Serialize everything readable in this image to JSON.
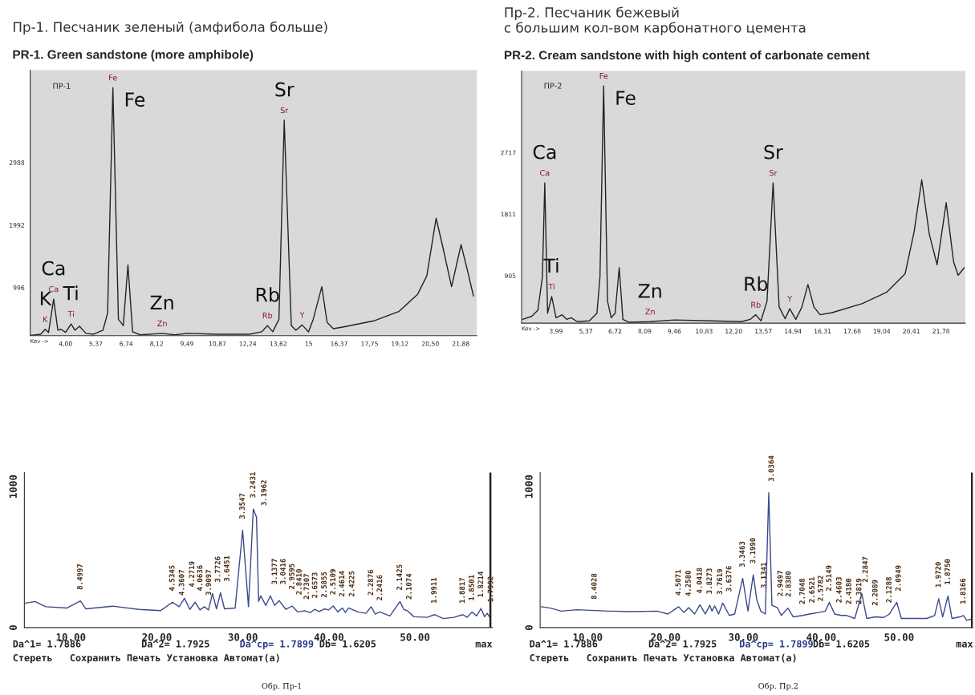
{
  "chart_data": [
    {
      "type": "line",
      "title": "Пр-1. Песчаник зеленый (амфибола больше)",
      "subtitle": "PR-1. Green sandstone (more amphibole)",
      "xlabel": "Kev ->",
      "series": [
        {
          "color": "#222222",
          "x": [
            2.41,
            2.87,
            3.08,
            3.23,
            3.46,
            3.65,
            3.79,
            4.0,
            4.25,
            4.42,
            4.63,
            4.92,
            5.27,
            5.69,
            5.9,
            6.14,
            6.39,
            6.61,
            6.82,
            7.03,
            7.38,
            8.37,
            8.93,
            9.49,
            10.9,
            12.31,
            12.87,
            13.13,
            13.37,
            13.65,
            13.89,
            14.21,
            14.42,
            14.7,
            14.99,
            15.2,
            15.59,
            15.83,
            16.11,
            16.54,
            17.94,
            19.07,
            19.92,
            20.34,
            20.76,
            21.04,
            21.46,
            21.89,
            22.17,
            22.45
          ],
          "values": [
            243,
            263,
            342,
            292,
            823,
            327,
            342,
            292,
            426,
            327,
            391,
            277,
            263,
            327,
            600,
            4192,
            500,
            401,
            1368,
            302,
            253,
            277,
            253,
            277,
            263,
            263,
            302,
            401,
            302,
            500,
            3672,
            401,
            327,
            411,
            302,
            500,
            1021,
            451,
            352,
            377,
            476,
            624,
            897,
            1194,
            2111,
            1690,
            1021,
            1690,
            1293,
            872
          ]
        }
      ],
      "xlim": [
        2.4,
        22.6
      ],
      "ylim": [
        240,
        4470
      ],
      "xticks": [
        {
          "value": 4.0,
          "label": "4,00"
        },
        {
          "value": 5.37,
          "label": "5,37"
        },
        {
          "value": 6.74,
          "label": "6,74"
        },
        {
          "value": 8.12,
          "label": "8,12"
        },
        {
          "value": 9.49,
          "label": "9,49"
        },
        {
          "value": 10.87,
          "label": "10,87"
        },
        {
          "value": 12.24,
          "label": "12,24"
        },
        {
          "value": 13.62,
          "label": "13,62"
        },
        15,
        {
          "value": 16.37,
          "label": "16,37"
        },
        {
          "value": 17.75,
          "label": "17,75"
        },
        {
          "value": 19.12,
          "label": "19,12"
        },
        {
          "value": 20.5,
          "label": "20,50"
        },
        {
          "value": 21.88,
          "label": "21,88"
        }
      ],
      "yticks": [
        996,
        1992,
        2988
      ],
      "annotations": [
        "ПР-1",
        {
          "text": "Fe",
          "x": 6.14,
          "y": 4192
        },
        {
          "text": "Sr",
          "x": 13.89,
          "y": 3672
        },
        {
          "text": "Ca",
          "x": 3.46,
          "y": 823
        },
        {
          "text": "K",
          "x": 3.08,
          "y": 342
        },
        {
          "text": "Ti",
          "x": 4.25,
          "y": 426
        },
        {
          "text": "Zn",
          "x": 8.37,
          "y": 277
        },
        {
          "text": "Rb",
          "x": 13.13,
          "y": 401
        },
        {
          "text": "K",
          "x": 3.08,
          "y": 342
        },
        {
          "text": "Ca",
          "x": 3.46,
          "y": 823
        },
        {
          "text": "Ti",
          "x": 4.25,
          "y": 426
        },
        {
          "text": "Fe",
          "x": 6.14,
          "y": 4192
        },
        {
          "text": "Zn",
          "x": 8.37,
          "y": 277
        },
        {
          "text": "Rb",
          "x": 13.13,
          "y": 401
        },
        {
          "text": "Sr",
          "x": 13.89,
          "y": 3672
        },
        {
          "text": "Y",
          "x": 14.7,
          "y": 411
        }
      ]
    },
    {
      "type": "line",
      "title": "Пр-2. Песчаник бежевый\nс большим кол-вом карбонатного цемента",
      "subtitle": "PR-2. Cream sandstone with high content of carbonate cement",
      "xlabel": "Kev ->",
      "series": [
        {
          "color": "#222222",
          "x": [
            2.45,
            2.87,
            3.15,
            3.36,
            3.47,
            3.6,
            3.79,
            3.99,
            4.27,
            4.48,
            4.69,
            4.97,
            5.53,
            5.88,
            6.02,
            6.19,
            6.37,
            6.54,
            6.72,
            6.91,
            7.08,
            7.36,
            8.34,
            9.46,
            11.14,
            12.55,
            12.97,
            13.22,
            13.46,
            13.74,
            14.02,
            14.3,
            14.58,
            14.79,
            15.07,
            15.35,
            15.63,
            15.91,
            16.19,
            16.75,
            18.15,
            19.28,
            20.12,
            20.54,
            20.89,
            21.24,
            21.6,
            22.02,
            22.36,
            22.57,
            22.85
          ],
          "values": [
            272,
            317,
            406,
            897,
            2281,
            361,
            607,
            295,
            339,
            272,
            295,
            237,
            250,
            361,
            897,
            3709,
            540,
            295,
            361,
            1031,
            272,
            228,
            237,
            263,
            250,
            237,
            272,
            339,
            250,
            540,
            2281,
            451,
            281,
            428,
            272,
            451,
            785,
            451,
            339,
            370,
            504,
            674,
            942,
            1567,
            2325,
            1522,
            1076,
            1990,
            1120,
            919,
            1031
          ]
        }
      ],
      "xlim": [
        2.4,
        22.9
      ],
      "ylim": [
        215,
        3930
      ],
      "xticks": [
        {
          "value": 3.99,
          "label": "3,99"
        },
        {
          "value": 5.37,
          "label": "5,37"
        },
        {
          "value": 6.72,
          "label": "6,72"
        },
        {
          "value": 8.09,
          "label": "8,09"
        },
        {
          "value": 9.46,
          "label": "9,46"
        },
        {
          "value": 10.83,
          "label": "10,83"
        },
        {
          "value": 12.2,
          "label": "12,20"
        },
        {
          "value": 13.57,
          "label": "13,57"
        },
        {
          "value": 14.94,
          "label": "14,94"
        },
        {
          "value": 16.31,
          "label": "16,31"
        },
        {
          "value": 17.68,
          "label": "17,68"
        },
        {
          "value": 19.04,
          "label": "19,04"
        },
        {
          "value": 20.41,
          "label": "20,41"
        },
        {
          "value": 21.78,
          "label": "21,78"
        }
      ],
      "yticks": [
        905,
        1811,
        2717
      ],
      "annotations": [
        "ПР-2",
        {
          "text": "Fe",
          "x": 6.19,
          "y": 3709
        },
        {
          "text": "Ca",
          "x": 3.47,
          "y": 2281
        },
        {
          "text": "Sr",
          "x": 14.02,
          "y": 2281
        },
        {
          "text": "Ti",
          "x": 3.79,
          "y": 607
        },
        {
          "text": "Zn",
          "x": 8.34,
          "y": 237
        },
        {
          "text": "Rb",
          "x": 13.22,
          "y": 339
        },
        {
          "text": "Ca",
          "x": 3.47,
          "y": 2281
        },
        {
          "text": "Fe",
          "x": 6.19,
          "y": 3709
        },
        {
          "text": "Ti",
          "x": 3.79,
          "y": 607
        },
        {
          "text": "Zn",
          "x": 8.34,
          "y": 237
        },
        {
          "text": "Rb",
          "x": 13.22,
          "y": 339
        },
        {
          "text": "Sr",
          "x": 14.02,
          "y": 2281
        },
        {
          "text": "Y",
          "x": 14.79,
          "y": 428
        }
      ]
    },
    {
      "type": "line",
      "series": [
        {
          "color": "#3a4a8a",
          "x": [
            4.6,
            5.84,
            7.08,
            9.56,
            11.12,
            11.74,
            14.84,
            17.93,
            20.42,
            21.81,
            22.59,
            23.21,
            23.83,
            24.45,
            25.01,
            25.53,
            26.0,
            26.47,
            26.93,
            27.4,
            27.86,
            29.1,
            29.97,
            30.65,
            31.21,
            31.58,
            31.83,
            32.07,
            32.67,
            33.19,
            33.69,
            34.22,
            35.0,
            35.71,
            36.39,
            37.16,
            37.84,
            38.34,
            38.87,
            39.49,
            39.95,
            40.51,
            41.04,
            41.56,
            41.91,
            42.28,
            43.37,
            44.3,
            44.91,
            45.38,
            45.91,
            47.09,
            48.26,
            48.7,
            49.1,
            49.88,
            51.43,
            52.26,
            53.28,
            54.53,
            55.55,
            56.08,
            56.63,
            57.16,
            57.69,
            58.09,
            58.4,
            58.71
          ],
          "values": [
            172,
            185,
            148,
            139,
            189,
            133,
            152,
            129,
            120,
            180,
            148,
            208,
            129,
            180,
            125,
            148,
            125,
            242,
            133,
            247,
            133,
            139,
            691,
            148,
            841,
            785,
            185,
            226,
            157,
            226,
            157,
            191,
            129,
            153,
            111,
            120,
            107,
            129,
            114,
            133,
            125,
            153,
            111,
            139,
            107,
            139,
            111,
            101,
            148,
            96,
            111,
            83,
            185,
            129,
            120,
            77,
            73,
            92,
            64,
            73,
            92,
            73,
            111,
            83,
            135,
            77,
            101,
            73
          ]
        }
      ],
      "xlim": [
        4.6,
        59.0
      ],
      "ylim": [
        0,
        1100
      ],
      "xticks": [
        {
          "value": 10,
          "label": "10.00"
        },
        {
          "value": 20,
          "label": "20.00"
        },
        {
          "value": 30,
          "label": "30.00"
        },
        {
          "value": 40,
          "label": "40.00"
        },
        {
          "value": 50,
          "label": "50.00"
        }
      ],
      "yticks": [
        0,
        1000
      ],
      "ref_lines": [
        {
          "axis": "x",
          "value": 58.77,
          "color": "#222222"
        }
      ],
      "annotations": [
        "Da^1= 1.7886",
        "Da^2= 1.7925",
        "Da^cp= 1.7899",
        "Db= 1.6205",
        "max",
        "Стереть   Сохранить Печать Установка Автомат(а)",
        "Обр. Пр-1",
        {
          "text": "8.4997",
          "x": 11.12,
          "y": 189
        },
        {
          "text": "4.5345",
          "x": 21.81,
          "y": 180
        },
        {
          "text": "4.3607",
          "x": 22.59,
          "y": 148
        },
        {
          "text": "4.2719",
          "x": 23.21,
          "y": 208
        },
        {
          "text": "4.0636",
          "x": 24.45,
          "y": 180
        },
        {
          "text": "3.9097",
          "x": 25.53,
          "y": 148
        },
        {
          "text": "3.7726",
          "x": 26.47,
          "y": 242
        },
        {
          "text": "3.6451",
          "x": 27.4,
          "y": 247
        },
        {
          "text": "3.3547",
          "x": 29.97,
          "y": 691
        },
        {
          "text": "3.2431",
          "x": 31.21,
          "y": 841
        },
        {
          "text": "3.1962",
          "x": 31.58,
          "y": 785
        },
        {
          "text": "3.1377",
          "x": 32.07,
          "y": 226
        },
        {
          "text": "3.0416",
          "x": 33.19,
          "y": 226
        },
        {
          "text": "2.9595",
          "x": 34.22,
          "y": 191
        },
        {
          "text": "2.8410",
          "x": 35.71,
          "y": 153
        },
        {
          "text": "2.7307",
          "x": 37.16,
          "y": 120
        },
        {
          "text": "2.6573",
          "x": 38.34,
          "y": 129
        },
        {
          "text": "2.5855",
          "x": 39.49,
          "y": 133
        },
        {
          "text": "2.5109",
          "x": 40.51,
          "y": 153
        },
        {
          "text": "2.4614",
          "x": 41.56,
          "y": 139
        },
        {
          "text": "2.4225",
          "x": 42.28,
          "y": 139
        },
        {
          "text": "2.2876",
          "x": 44.91,
          "y": 148
        },
        {
          "text": "2.2416",
          "x": 45.91,
          "y": 111
        },
        {
          "text": "2.1425",
          "x": 48.26,
          "y": 185
        },
        {
          "text": "2.1074",
          "x": 49.1,
          "y": 120
        },
        {
          "text": "1.9911",
          "x": 52.26,
          "y": 92
        },
        {
          "text": "1.8817",
          "x": 55.55,
          "y": 92
        },
        {
          "text": "1.8501",
          "x": 56.63,
          "y": 111
        },
        {
          "text": "1.8214",
          "x": 57.69,
          "y": 135
        },
        {
          "text": "1.7992",
          "x": 58.4,
          "y": 101
        }
      ]
    },
    {
      "type": "line",
      "series": [
        {
          "color": "#3a4a8a",
          "x": [
            4.04,
            5.24,
            6.61,
            8.66,
            10.89,
            12.78,
            15.52,
            18.94,
            20.31,
            21.69,
            22.36,
            22.98,
            23.74,
            24.42,
            25.11,
            25.69,
            25.96,
            26.31,
            26.82,
            27.34,
            28.19,
            28.88,
            29.91,
            30.59,
            31.27,
            31.72,
            32.23,
            32.82,
            33.26,
            33.67,
            34.36,
            34.87,
            35.72,
            36.41,
            37.62,
            38.47,
            39.67,
            40.52,
            41.04,
            41.73,
            42.58,
            43.27,
            44.3,
            45.22,
            45.84,
            46.97,
            48.06,
            48.75,
            49.7,
            50.29,
            51.83,
            53.55,
            54.57,
            55.09,
            55.6,
            56.28,
            56.79,
            57.82,
            58.27,
            58.68,
            59.2
          ],
          "values": [
            148,
            138,
            117,
            127,
            121,
            117,
            113,
            117,
            96,
            148,
            107,
            142,
            96,
            162,
            96,
            158,
            117,
            154,
            96,
            175,
            86,
            96,
            349,
            117,
            374,
            199,
            117,
            96,
            957,
            158,
            142,
            86,
            138,
            76,
            86,
            96,
            107,
            117,
            179,
            96,
            86,
            86,
            65,
            241,
            65,
            76,
            72,
            96,
            179,
            65,
            65,
            65,
            86,
            204,
            76,
            224,
            65,
            76,
            86,
            51,
            59
          ]
        }
      ],
      "xlim": [
        3.9,
        59.5
      ],
      "ylim": [
        0,
        1100
      ],
      "xticks": [
        {
          "value": 10,
          "label": "10.00"
        },
        {
          "value": 20,
          "label": "20.00"
        },
        {
          "value": 30,
          "label": "30.00"
        },
        {
          "value": 40,
          "label": "40.00"
        },
        {
          "value": 50,
          "label": "50.00"
        }
      ],
      "yticks": [
        0,
        1000
      ],
      "ref_lines": [
        {
          "axis": "x",
          "value": 59.36,
          "color": "#222222"
        }
      ],
      "annotations": [
        "Da^1= 1.7886",
        "Da^2= 1.7925",
        "Da^cp= 1.7899",
        "Db= 1.6205",
        "max",
        "Стереть   Сохранить Печать Установка Автомат(а)",
        "Обр. Пр.2",
        {
          "text": "8.4028",
          "x": 10.89,
          "y": 121
        },
        {
          "text": "4.5071",
          "x": 21.69,
          "y": 148
        },
        {
          "text": "4.2580",
          "x": 22.98,
          "y": 142
        },
        {
          "text": "4.0418",
          "x": 24.42,
          "y": 162
        },
        {
          "text": "3.8273",
          "x": 25.69,
          "y": 158
        },
        {
          "text": "3.7619",
          "x": 26.31,
          "y": 154
        },
        {
          "text": "3.6376",
          "x": 27.34,
          "y": 175
        },
        {
          "text": "3.3463",
          "x": 29.91,
          "y": 349
        },
        {
          "text": "3.1990",
          "x": 31.27,
          "y": 374
        },
        {
          "text": "3.1341",
          "x": 31.72,
          "y": 199
        },
        {
          "text": "3.0364",
          "x": 33.26,
          "y": 957
        },
        {
          "text": "2.9497",
          "x": 34.36,
          "y": 142
        },
        {
          "text": "2.8380",
          "x": 35.72,
          "y": 138
        },
        {
          "text": "2.7048",
          "x": 37.62,
          "y": 86
        },
        {
          "text": "2.6521",
          "x": 38.47,
          "y": 96
        },
        {
          "text": "2.5782",
          "x": 39.67,
          "y": 107
        },
        {
          "text": "2.5149",
          "x": 41.04,
          "y": 179
        },
        {
          "text": "2.4603",
          "x": 41.73,
          "y": 96
        },
        {
          "text": "2.4180",
          "x": 42.58,
          "y": 86
        },
        {
          "text": "2.3819",
          "x": 43.27,
          "y": 86
        },
        {
          "text": "2.2847",
          "x": 45.22,
          "y": 241
        },
        {
          "text": "2.2089",
          "x": 46.97,
          "y": 76
        },
        {
          "text": "2.1288",
          "x": 48.75,
          "y": 96
        },
        {
          "text": "2.0949",
          "x": 49.7,
          "y": 179
        },
        {
          "text": "1.9720",
          "x": 55.09,
          "y": 204
        },
        {
          "text": "1.8750",
          "x": 56.28,
          "y": 224
        },
        {
          "text": "1.8166",
          "x": 58.27,
          "y": 86
        }
      ]
    }
  ]
}
